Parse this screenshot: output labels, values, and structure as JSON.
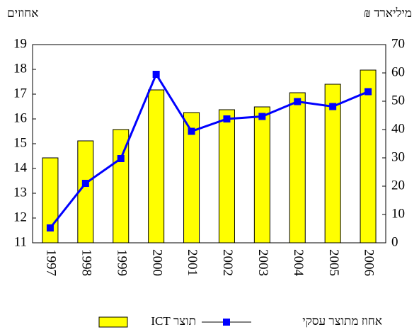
{
  "chart_data": {
    "type": "bar",
    "y_label": "אחוזים",
    "y2_label": "מיליארד ₪",
    "categories": [
      "1997",
      "1998",
      "1999",
      "2000",
      "2001",
      "2002",
      "2003",
      "2004",
      "2005",
      "2006"
    ],
    "series": [
      {
        "name": "תוצר ICT",
        "type": "bar",
        "axis": "y2",
        "color": "#ffff00",
        "values": [
          30,
          36,
          40,
          54,
          46,
          47,
          48,
          53,
          56,
          61
        ]
      },
      {
        "name": "אחוז מתוצר עסקי",
        "type": "line",
        "axis": "y",
        "color": "#0000ff",
        "values": [
          11.6,
          13.4,
          14.4,
          17.8,
          15.5,
          16.0,
          16.1,
          16.7,
          16.5,
          17.1
        ]
      }
    ],
    "ylim": [
      11,
      19
    ],
    "yticks": [
      11,
      12,
      13,
      14,
      15,
      16,
      17,
      18,
      19
    ],
    "y2lim": [
      0,
      70
    ],
    "y2ticks": [
      0,
      10,
      20,
      30,
      40,
      50,
      60,
      70
    ],
    "grid": false
  }
}
